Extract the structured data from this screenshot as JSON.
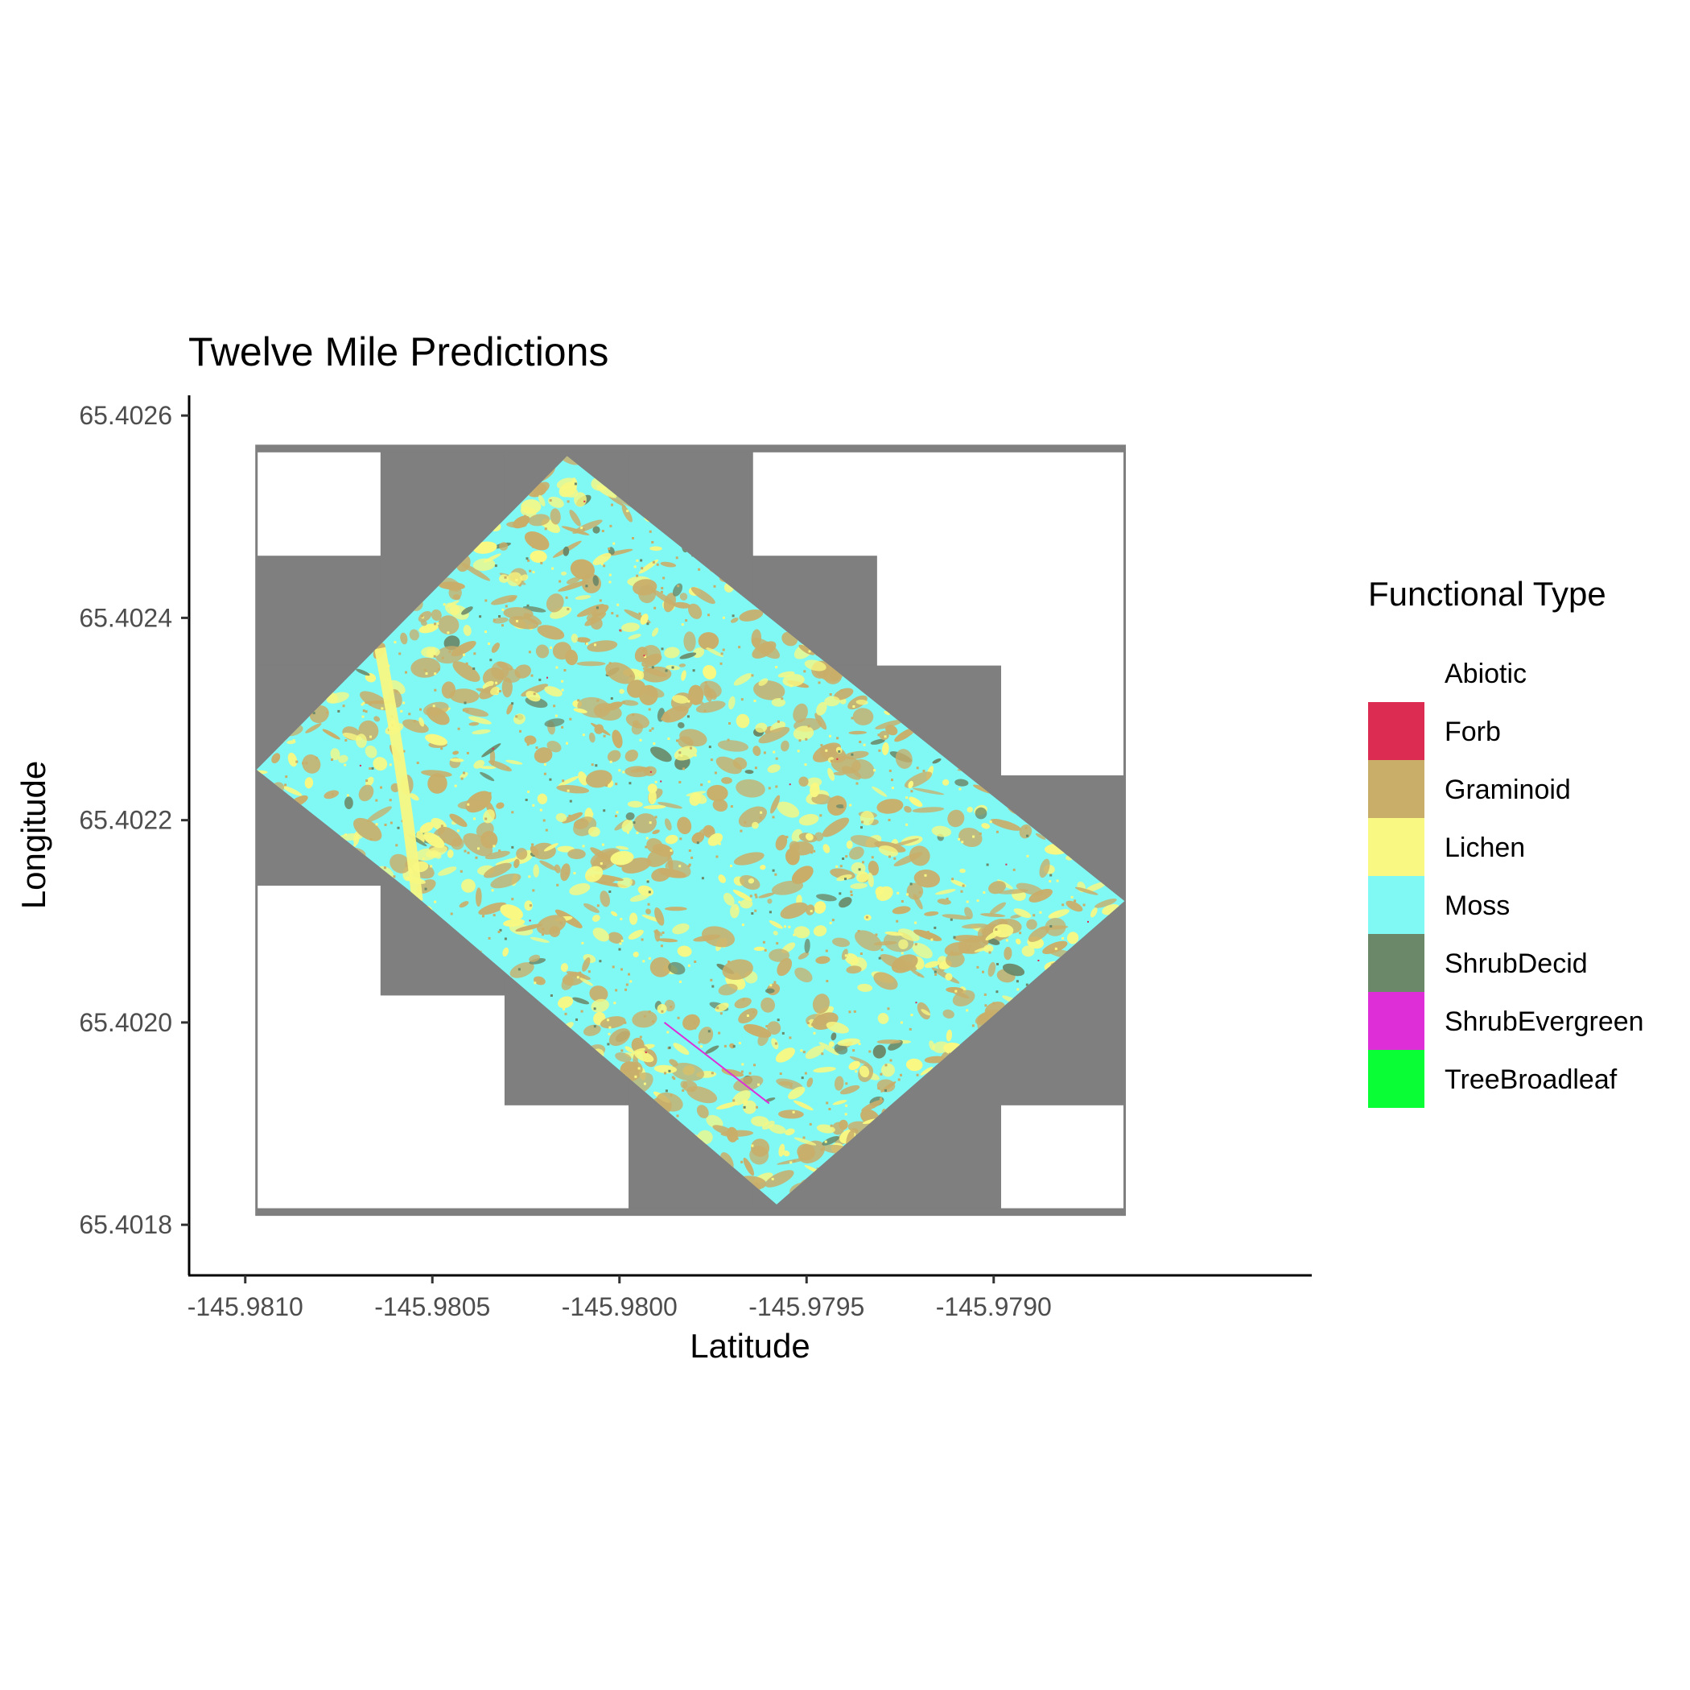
{
  "chart_data": {
    "type": "heatmap",
    "title": "Twelve Mile Predictions",
    "xlabel": "Latitude",
    "ylabel": "Longitude",
    "xlim": [
      -145.98115,
      -145.97815
    ],
    "ylim": [
      65.40175,
      65.40262
    ],
    "x_ticks": [
      -145.981,
      -145.9805,
      -145.98,
      -145.9795,
      -145.979
    ],
    "x_tick_labels": [
      "-145.9810",
      "-145.9805",
      "-145.9800",
      "-145.9795",
      "-145.9790"
    ],
    "y_ticks": [
      65.4018,
      65.402,
      65.4022,
      65.4024,
      65.4026
    ],
    "y_tick_labels": [
      "65.4018",
      "65.4020",
      "65.4022",
      "65.4024",
      "65.4026"
    ],
    "grid": false,
    "background_tile_color": "#7f7f7f",
    "raster_extent": {
      "x": [
        -145.98097,
        -145.97865
      ],
      "y": [
        65.40181,
        65.40257
      ]
    },
    "survey_polygon": [
      {
        "x": -145.98097,
        "y": 65.40225
      },
      {
        "x": -145.98014,
        "y": 65.40256
      },
      {
        "x": -145.97865,
        "y": 65.40212
      },
      {
        "x": -145.97958,
        "y": 65.40182
      },
      {
        "x": -145.98056,
        "y": 65.40213
      }
    ],
    "legend": {
      "title": "Functional Type",
      "position": "right",
      "items": [
        {
          "label": "Abiotic",
          "color": "#ffffff"
        },
        {
          "label": "Forb",
          "color": "#dc2c52"
        },
        {
          "label": "Graminoid",
          "color": "#c9ae6a"
        },
        {
          "label": "Lichen",
          "color": "#f8f882"
        },
        {
          "label": "Moss",
          "color": "#80f8f4"
        },
        {
          "label": "ShrubDecid",
          "color": "#6b8868"
        },
        {
          "label": "ShrubEvergreen",
          "color": "#dd2ed7"
        },
        {
          "label": "TreeBroadleaf",
          "color": "#09fe36"
        }
      ]
    },
    "class_share": {
      "Moss": 0.48,
      "Graminoid": 0.28,
      "Lichen": 0.2,
      "ShrubDecid": 0.03,
      "Forb": 0.005,
      "ShrubEvergreen": 0.005
    }
  }
}
